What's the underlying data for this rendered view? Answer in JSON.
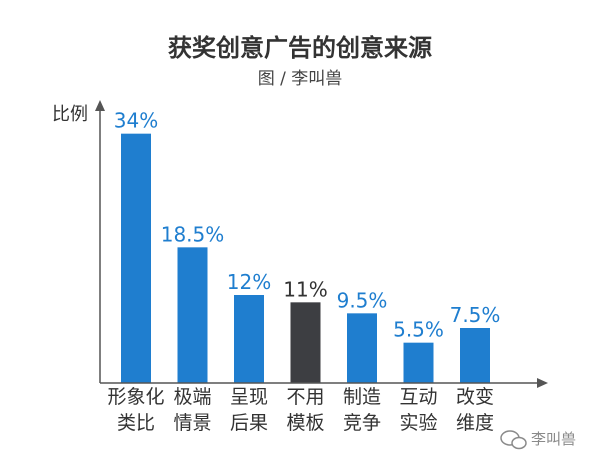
{
  "chart_data": {
    "type": "bar",
    "title": "获奖创意广告的创意来源",
    "subtitle": "图 / 李叫兽",
    "ylabel": "比例",
    "xlabel": "",
    "categories": [
      [
        "形象化",
        "类比"
      ],
      [
        "极端",
        "情景"
      ],
      [
        "呈现",
        "后果"
      ],
      [
        "不用",
        "模板"
      ],
      [
        "制造",
        "竞争"
      ],
      [
        "互动",
        "实验"
      ],
      [
        "改变",
        "维度"
      ]
    ],
    "values": [
      34,
      18.5,
      12,
      11,
      9.5,
      5.5,
      7.5
    ],
    "value_labels": [
      "34%",
      "18.5%",
      "12%",
      "11%",
      "9.5%",
      "5.5%",
      "7.5%"
    ],
    "ylim": [
      0,
      36
    ],
    "grid": false,
    "colors": {
      "bar": "#1f7ecf",
      "bar_highlight": "#3d3e42",
      "label": "#1f7ecf",
      "label_highlight": "#333333",
      "axis": "#555555"
    },
    "highlight_index": 3
  },
  "watermark": {
    "text": "李叫兽",
    "icon": "wechat-icon"
  }
}
